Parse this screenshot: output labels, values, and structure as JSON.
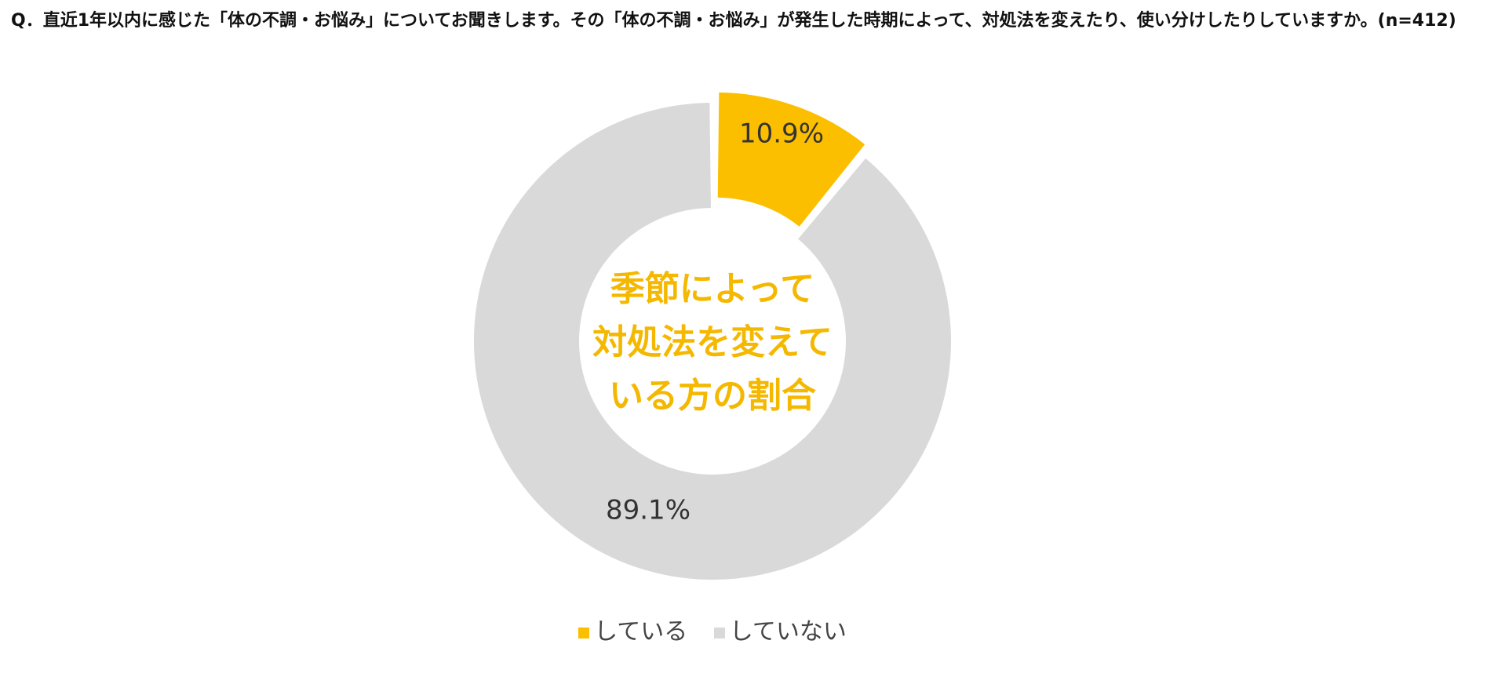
{
  "chart_data": {
    "type": "pie",
    "variant": "donut",
    "title": "Q．直近1年以内に感じた「体の不調・お悩み」についてお聞きします。その「体の不調・お悩み」が発生した時期によって、対処法を変えたり、使い分けしたりしていますか。(n=412)",
    "center_label": [
      "季節によって",
      "対処法を変えて",
      "いる方の割合"
    ],
    "categories": [
      "している",
      "していない"
    ],
    "values": [
      10.9,
      89.1
    ],
    "data_labels": [
      "10.9%",
      "89.1%"
    ],
    "colors": [
      "#fbbf00",
      "#d9d9d9"
    ],
    "exploded": [
      true,
      false
    ],
    "legend_position": "bottom"
  }
}
